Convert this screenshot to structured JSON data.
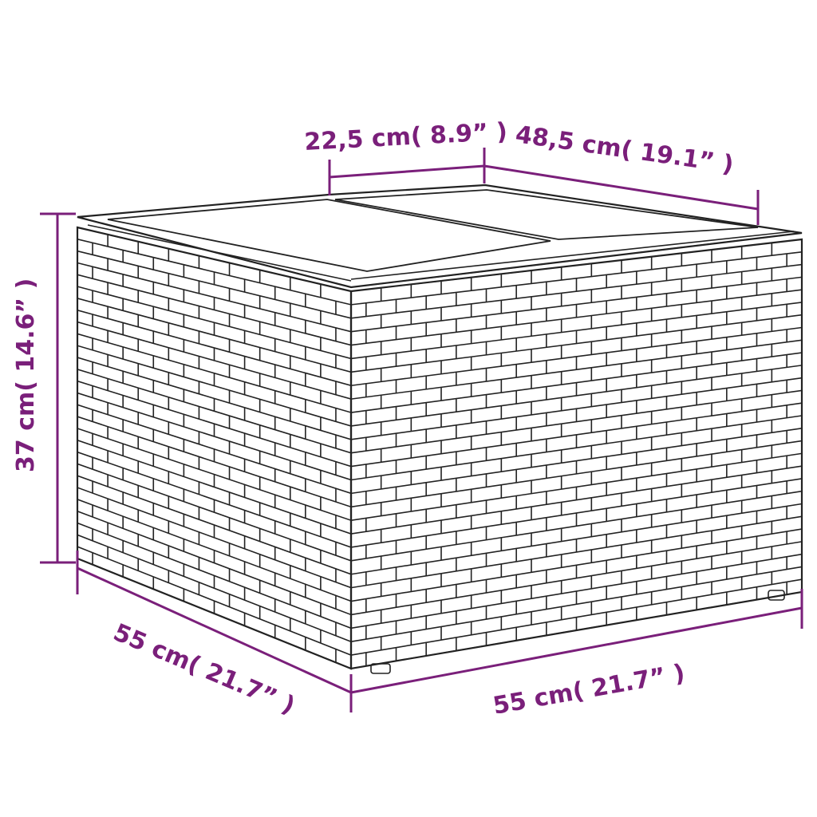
{
  "accent_color": "#7a1f7a",
  "dimensions": {
    "top_depth": "22,5 cm( 8.9” )",
    "top_width": "48,5 cm( 19.1” )",
    "height": "37 cm( 14.6” )",
    "side_depth": "55 cm( 21.7” )",
    "front_width": "55 cm( 21.7” )"
  }
}
